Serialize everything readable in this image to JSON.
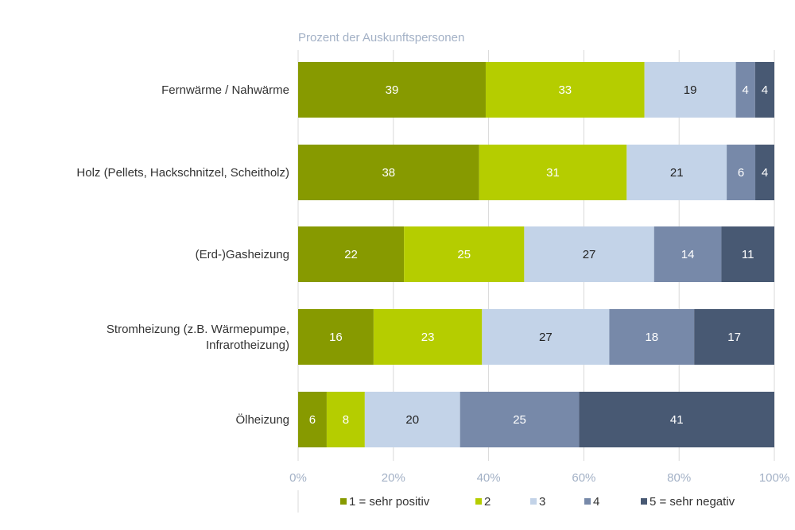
{
  "chart_data": {
    "type": "bar",
    "orientation": "horizontal",
    "stacked": true,
    "title": "",
    "xlabel": "Prozent der Auskunftspersonen",
    "ylabel": "",
    "xlim": [
      0,
      100
    ],
    "x_ticks": [
      "0%",
      "20%",
      "40%",
      "60%",
      "80%",
      "100%"
    ],
    "categories": [
      [
        "Fernwärme / Nahwärme"
      ],
      [
        "Holz (Pellets, Hackschnitzel, Scheitholz)"
      ],
      [
        "(Erd-)Gasheizung"
      ],
      [
        "Stromheizung (z.B. Wärmepumpe,",
        "Infrarotheizung)"
      ],
      [
        "Ölheizung"
      ]
    ],
    "series": [
      {
        "name": "1 = sehr positiv",
        "color": "#879a00",
        "label_color": "#ffffff",
        "values": [
          39,
          38,
          22,
          16,
          6
        ]
      },
      {
        "name": "2",
        "color": "#b5cd00",
        "label_color": "#ffffff",
        "values": [
          33,
          31,
          25,
          23,
          8
        ]
      },
      {
        "name": "3",
        "color": "#c3d3e8",
        "label_color": "#222222",
        "values": [
          19,
          21,
          27,
          27,
          20
        ]
      },
      {
        "name": "4",
        "color": "#7789a9",
        "label_color": "#ffffff",
        "values": [
          4,
          6,
          14,
          18,
          25
        ]
      },
      {
        "name": "5 = sehr negativ",
        "color": "#485973",
        "label_color": "#ffffff",
        "values": [
          4,
          4,
          11,
          17,
          41
        ]
      }
    ],
    "grid": true,
    "legend_position": "bottom"
  }
}
